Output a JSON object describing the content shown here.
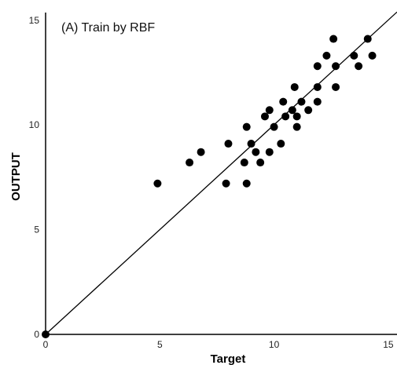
{
  "chart_data": {
    "type": "scatter",
    "title": "(A)  Train by RBF",
    "xlabel": "Target",
    "ylabel": "OUTPUT",
    "xlim": [
      0,
      15
    ],
    "ylim": [
      0,
      15
    ],
    "x_ticks": [
      "0",
      "5",
      "10",
      "15"
    ],
    "y_ticks": [
      "0",
      "5",
      "10",
      "15"
    ],
    "grid": false,
    "reference_line": "y = x",
    "series": [
      {
        "points": [
          [
            0,
            0
          ],
          [
            4.9,
            7.2
          ],
          [
            6.3,
            8.2
          ],
          [
            6.8,
            8.7
          ],
          [
            7.9,
            7.2
          ],
          [
            8.0,
            9.1
          ],
          [
            8.7,
            8.2
          ],
          [
            8.8,
            7.2
          ],
          [
            8.8,
            9.9
          ],
          [
            9.0,
            9.1
          ],
          [
            9.2,
            8.7
          ],
          [
            9.4,
            8.2
          ],
          [
            9.6,
            10.4
          ],
          [
            9.8,
            8.7
          ],
          [
            9.8,
            10.7
          ],
          [
            10.0,
            9.9
          ],
          [
            10.3,
            9.1
          ],
          [
            10.4,
            11.1
          ],
          [
            10.5,
            10.4
          ],
          [
            10.8,
            10.7
          ],
          [
            10.9,
            11.8
          ],
          [
            11.0,
            9.9
          ],
          [
            11.0,
            10.4
          ],
          [
            11.2,
            11.1
          ],
          [
            11.5,
            10.7
          ],
          [
            11.9,
            11.1
          ],
          [
            11.9,
            11.8
          ],
          [
            11.9,
            12.8
          ],
          [
            12.3,
            13.3
          ],
          [
            12.6,
            14.1
          ],
          [
            12.7,
            11.8
          ],
          [
            12.7,
            12.8
          ],
          [
            13.5,
            13.3
          ],
          [
            13.7,
            12.8
          ],
          [
            14.1,
            14.1
          ],
          [
            14.3,
            13.3
          ]
        ]
      }
    ]
  }
}
